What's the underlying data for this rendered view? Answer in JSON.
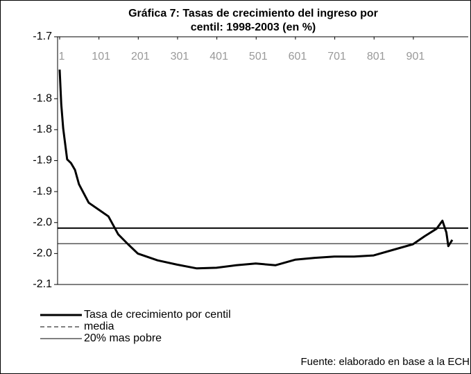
{
  "chart_data": {
    "type": "line",
    "title": [
      "Gráfica 7: Tasas de crecimiento del ingreso por",
      "centil: 1998-2003 (en %)"
    ],
    "source": "Fuente: elaborado en base a la ECH",
    "x": [
      1,
      5,
      10,
      20,
      30,
      40,
      50,
      75,
      100,
      125,
      150,
      175,
      200,
      250,
      300,
      350,
      400,
      450,
      500,
      550,
      600,
      650,
      700,
      750,
      800,
      850,
      900,
      930,
      960,
      975,
      985,
      990,
      1000
    ],
    "series": [
      {
        "name": "Tasa de crecimiento por centil",
        "color": "#000000",
        "values": [
          -1.753,
          -1.809,
          -1.848,
          -1.898,
          -1.904,
          -1.915,
          -1.938,
          -1.968,
          -1.979,
          -1.99,
          -2.019,
          -2.035,
          -2.05,
          -2.061,
          -2.068,
          -2.074,
          -2.073,
          -2.069,
          -2.066,
          -2.069,
          -2.06,
          -2.057,
          -2.055,
          -2.055,
          -2.053,
          -2.044,
          -2.035,
          -2.022,
          -2.01,
          -1.997,
          -2.016,
          -2.038,
          -2.028
        ]
      }
    ],
    "hlines": [
      {
        "name": "media",
        "value": -2.009,
        "dashed_in_legend": true
      },
      {
        "name": "20% mas pobre",
        "value": -2.034,
        "dashed_in_legend": false
      }
    ],
    "xlim": [
      1,
      1000
    ],
    "xticks": [
      1,
      101,
      201,
      301,
      401,
      501,
      601,
      701,
      801,
      901
    ],
    "ylim": [
      -2.1,
      -1.7
    ],
    "yticks": [
      {
        "value": -2.1,
        "label": "-2.1"
      },
      {
        "value": -2.05,
        "label": "-2.0"
      },
      {
        "value": -2.0,
        "label": "-2.0"
      },
      {
        "value": -1.95,
        "label": "-1.9"
      },
      {
        "value": -1.9,
        "label": "-1.9"
      },
      {
        "value": -1.85,
        "label": "-1.8"
      },
      {
        "value": -1.8,
        "label": "-1.8"
      },
      {
        "value": -1.7,
        "label": "-1.7"
      }
    ]
  }
}
